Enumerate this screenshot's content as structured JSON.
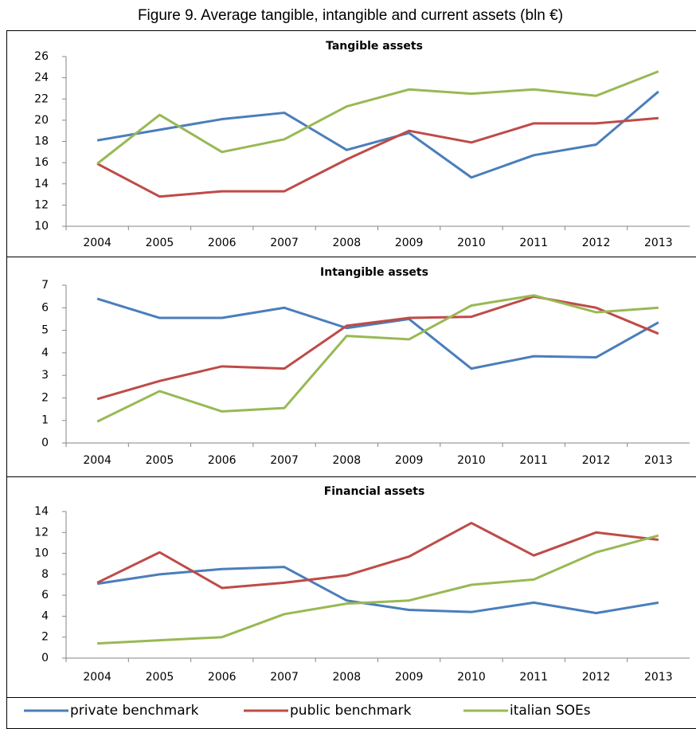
{
  "title": "Figure 9. Average tangible, intangible and current assets (bln €)",
  "chart_data": [
    {
      "type": "line",
      "title": "Tangible assets",
      "categories": [
        "2004",
        "2005",
        "2006",
        "2007",
        "2008",
        "2009",
        "2010",
        "2011",
        "2012",
        "2013"
      ],
      "series": [
        {
          "name": "private benchmark",
          "color": "#4a7ebb",
          "values": [
            18.1,
            19.1,
            20.1,
            20.7,
            17.2,
            18.8,
            14.6,
            16.7,
            17.7,
            22.7
          ]
        },
        {
          "name": "public benchmark",
          "color": "#be4b48",
          "values": [
            15.9,
            12.8,
            13.3,
            13.3,
            16.3,
            19.0,
            17.9,
            19.7,
            19.7,
            20.2
          ]
        },
        {
          "name": "italian SOEs",
          "color": "#98b954",
          "values": [
            15.9,
            20.5,
            17.0,
            18.2,
            21.3,
            22.9,
            22.5,
            22.9,
            22.3,
            24.6
          ]
        }
      ],
      "ylim": [
        10,
        26
      ],
      "yticks": [
        10,
        12,
        14,
        16,
        18,
        20,
        22,
        24,
        26
      ],
      "grid": false
    },
    {
      "type": "line",
      "title": "Intangible assets",
      "categories": [
        "2004",
        "2005",
        "2006",
        "2007",
        "2008",
        "2009",
        "2010",
        "2011",
        "2012",
        "2013"
      ],
      "series": [
        {
          "color": "#4a7ebb",
          "values": [
            6.4,
            5.55,
            5.55,
            6.0,
            5.1,
            5.5,
            3.3,
            3.85,
            3.8,
            5.35
          ]
        },
        {
          "color": "#be4b48",
          "values": [
            1.95,
            2.75,
            3.4,
            3.3,
            5.2,
            5.55,
            5.6,
            6.5,
            6.0,
            4.85
          ]
        },
        {
          "color": "#98b954",
          "values": [
            0.95,
            2.3,
            1.4,
            1.55,
            4.75,
            4.6,
            6.1,
            6.55,
            5.8,
            6.0
          ]
        }
      ],
      "ylim": [
        0,
        7
      ],
      "yticks": [
        0,
        1,
        2,
        3,
        4,
        5,
        6,
        7
      ],
      "grid": false
    },
    {
      "type": "line",
      "title": "Financial assets",
      "categories": [
        "2004",
        "2005",
        "2006",
        "2007",
        "2008",
        "2009",
        "2010",
        "2011",
        "2012",
        "2013"
      ],
      "series": [
        {
          "color": "#4a7ebb",
          "values": [
            7.1,
            8.0,
            8.5,
            8.7,
            5.5,
            4.6,
            4.4,
            5.3,
            4.3,
            5.3
          ]
        },
        {
          "color": "#be4b48",
          "values": [
            7.2,
            10.1,
            6.7,
            7.2,
            7.9,
            9.7,
            12.9,
            9.8,
            12.0,
            11.3
          ]
        },
        {
          "color": "#98b954",
          "values": [
            1.4,
            1.7,
            2.0,
            4.2,
            5.2,
            5.5,
            7.0,
            7.5,
            10.1,
            11.7
          ]
        }
      ],
      "ylim": [
        0,
        14
      ],
      "yticks": [
        0,
        2,
        4,
        6,
        8,
        10,
        12,
        14
      ],
      "grid": false
    }
  ]
}
